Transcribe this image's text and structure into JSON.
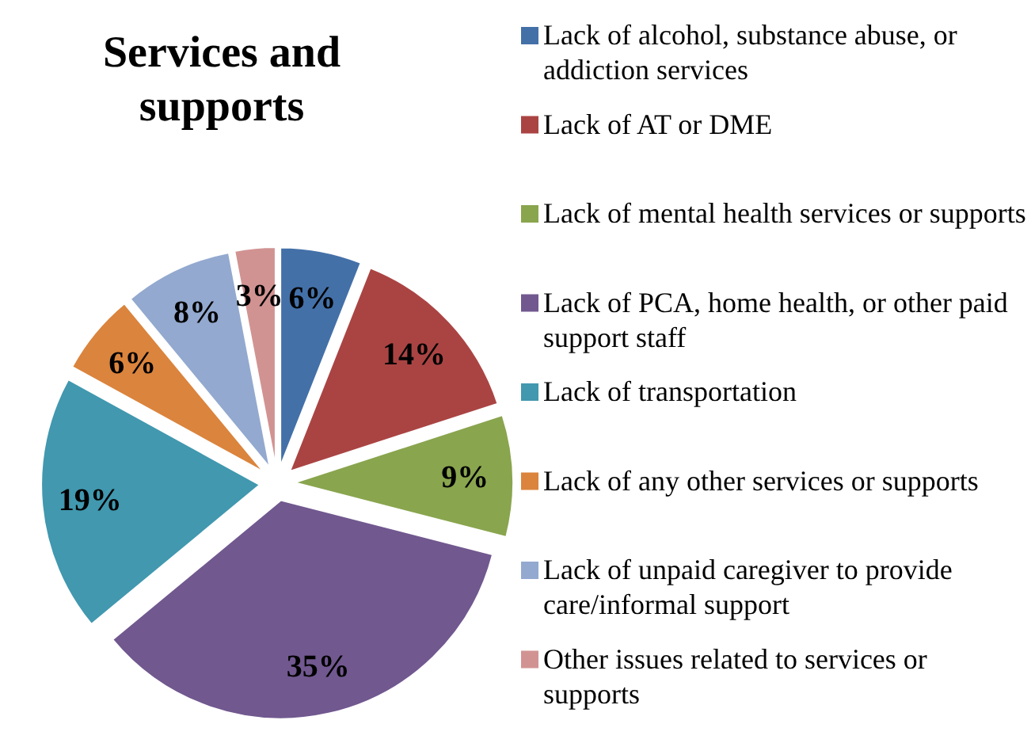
{
  "chart_data": {
    "type": "pie",
    "title": "Services and supports",
    "categories": [
      "Lack of alcohol, substance abuse, or addiction services",
      "Lack of AT or DME",
      "Lack of mental health services or supports",
      "Lack of PCA, home health, or other paid support staff",
      "Lack of transportation",
      "Lack of any other services or supports",
      "Lack of unpaid caregiver to provide care/informal support",
      "Other issues related to services or supports"
    ],
    "values": [
      6,
      14,
      9,
      35,
      19,
      6,
      8,
      3
    ],
    "value_labels": [
      "6%",
      "14%",
      "9%",
      "35%",
      "19%",
      "6%",
      "8%",
      "3%"
    ],
    "colors": [
      "#4470a8",
      "#aa4443",
      "#89a54e",
      "#71588f",
      "#4198af",
      "#db843d",
      "#93a9cf",
      "#d19392"
    ],
    "legend": "right"
  }
}
